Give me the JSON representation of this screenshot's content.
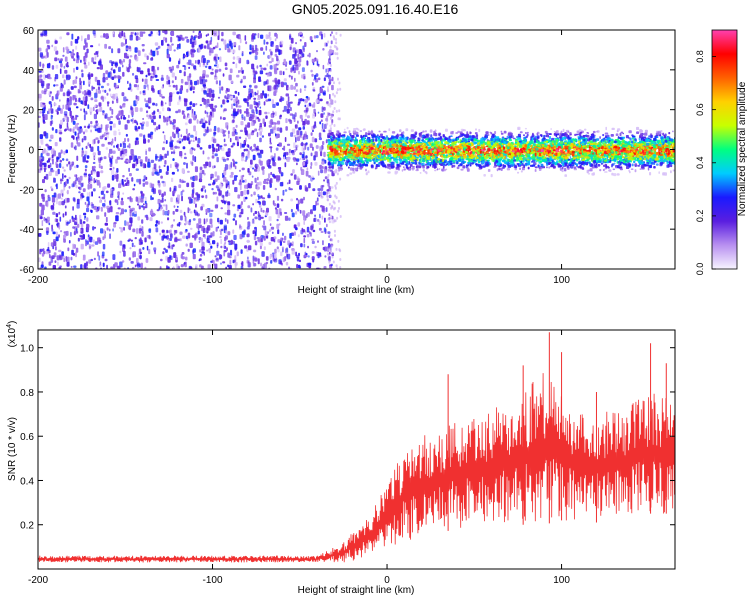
{
  "title": "GN05.2025.091.16.40.E16",
  "chart_data": [
    {
      "type": "heatmap",
      "xlabel": "Height of straight line (km)",
      "ylabel": "Frequency (Hz)",
      "xlim": [
        -200,
        165
      ],
      "ylim": [
        -60,
        60
      ],
      "x_ticks": [
        -200,
        -100,
        0,
        100
      ],
      "x_tick_labels": [
        "-200",
        "-100",
        "0",
        "100"
      ],
      "y_ticks": [
        -60,
        -40,
        -20,
        0,
        20,
        40,
        60
      ],
      "y_tick_labels": [
        "-60",
        "-40",
        "-20",
        "0",
        "20",
        "40",
        "60"
      ],
      "noise_region_x": [
        -200,
        -35
      ],
      "signal_band_center_hz": 0,
      "signal_band_halfwidth_hz": 7,
      "colorbar": {
        "label": "Normalized spectral amplitude",
        "range": [
          0,
          0.9
        ],
        "ticks": [
          0.0,
          0.2,
          0.4,
          0.6,
          0.8
        ],
        "tick_labels": [
          "0.0",
          "0.2",
          "0.4",
          "0.6",
          "0.8"
        ],
        "colors": [
          "#f8f4ff",
          "#b890f0",
          "#5a1ee0",
          "#1a1aff",
          "#00ccff",
          "#00ff80",
          "#c8ff00",
          "#ffd000",
          "#ff6000",
          "#ff0000",
          "#ff40b0"
        ]
      }
    },
    {
      "type": "line",
      "xlabel": "Height of straight line (km)",
      "ylabel": "SNR (10 * v/v)",
      "scale_label": "(x10",
      "scale_exponent": "4",
      "xlim": [
        -200,
        165
      ],
      "ylim": [
        0,
        1.08
      ],
      "x_ticks": [
        -200,
        -100,
        0,
        100
      ],
      "x_tick_labels": [
        "-200",
        "-100",
        "0",
        "100"
      ],
      "y_ticks": [
        0.2,
        0.4,
        0.6,
        0.8,
        1.0
      ],
      "y_tick_labels": [
        "0.2",
        "0.4",
        "0.6",
        "0.8",
        "1.0"
      ],
      "series": [
        {
          "color": "#f03030",
          "envelope": {
            "x": [
              -200,
              -40,
              -25,
              -10,
              0,
              10,
              20,
              40,
              60,
              80,
              90,
              100,
              110,
              130,
              150,
              165
            ],
            "low": [
              0.03,
              0.03,
              0.03,
              0.05,
              0.08,
              0.12,
              0.15,
              0.18,
              0.2,
              0.2,
              0.2,
              0.22,
              0.2,
              0.22,
              0.25,
              0.25
            ],
            "high": [
              0.06,
              0.06,
              0.12,
              0.25,
              0.38,
              0.55,
              0.6,
              0.68,
              0.72,
              0.82,
              0.9,
              0.8,
              0.72,
              0.72,
              0.8,
              0.78
            ]
          },
          "peaks": [
            [
              93,
              1.07
            ],
            [
              78,
              0.92
            ],
            [
              151,
              1.02
            ],
            [
              160,
              0.93
            ],
            [
              35,
              0.88
            ],
            [
              100,
              0.98
            ],
            [
              120,
              0.8
            ]
          ]
        }
      ]
    }
  ]
}
